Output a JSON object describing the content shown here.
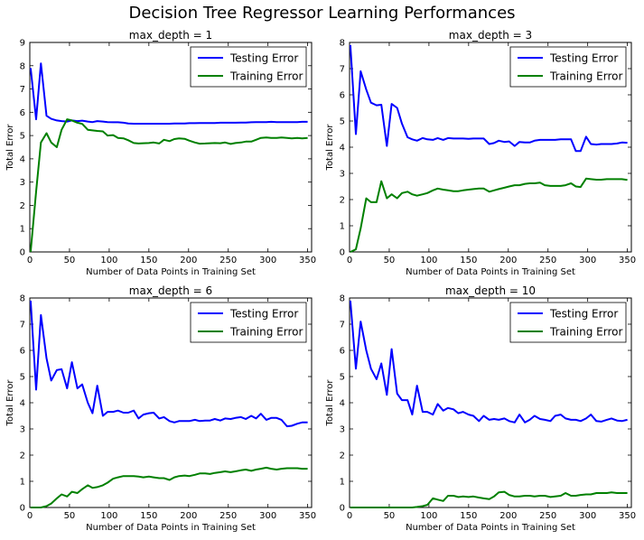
{
  "figure": {
    "title": "Decision Tree Regressor Learning Performances"
  },
  "chart_data": [
    {
      "type": "line",
      "title": "max_depth = 1",
      "xlabel": "Number of Data Points in Training Set",
      "ylabel": "Total Error",
      "xlim": [
        0,
        355
      ],
      "ylim": [
        0,
        9
      ],
      "xticks": [
        0,
        50,
        100,
        150,
        200,
        250,
        300,
        350
      ],
      "yticks": [
        0,
        1,
        2,
        3,
        4,
        5,
        6,
        7,
        8,
        9
      ],
      "legend": "top-right",
      "series": [
        {
          "name": "Testing Error",
          "color": "#0000ff",
          "x": [
            1,
            8,
            14,
            21,
            27,
            34,
            40,
            47,
            53,
            60,
            66,
            73,
            79,
            85,
            92,
            98,
            105,
            111,
            118,
            124,
            131,
            137,
            143,
            150,
            156,
            163,
            169,
            176,
            182,
            188,
            195,
            201,
            208,
            214,
            221,
            227,
            233,
            240,
            246,
            253,
            259,
            266,
            272,
            279,
            285,
            291,
            298,
            304,
            311,
            317,
            324,
            330,
            337,
            343,
            350
          ],
          "y": [
            7.9,
            5.7,
            8.1,
            5.85,
            5.72,
            5.65,
            5.62,
            5.6,
            5.65,
            5.62,
            5.64,
            5.6,
            5.58,
            5.62,
            5.6,
            5.58,
            5.57,
            5.57,
            5.55,
            5.52,
            5.51,
            5.51,
            5.51,
            5.51,
            5.51,
            5.51,
            5.51,
            5.51,
            5.52,
            5.52,
            5.52,
            5.53,
            5.53,
            5.54,
            5.54,
            5.54,
            5.54,
            5.55,
            5.55,
            5.55,
            5.55,
            5.56,
            5.56,
            5.57,
            5.58,
            5.58,
            5.58,
            5.59,
            5.58,
            5.58,
            5.58,
            5.58,
            5.58,
            5.59,
            5.59
          ]
        },
        {
          "name": "Training Error",
          "color": "#008000",
          "x": [
            1,
            8,
            14,
            21,
            27,
            34,
            40,
            47,
            53,
            60,
            66,
            73,
            79,
            85,
            92,
            98,
            105,
            111,
            118,
            124,
            131,
            137,
            143,
            150,
            156,
            163,
            169,
            176,
            182,
            188,
            195,
            201,
            208,
            214,
            221,
            227,
            233,
            240,
            246,
            253,
            259,
            266,
            272,
            279,
            285,
            291,
            298,
            304,
            311,
            317,
            324,
            330,
            337,
            343,
            350
          ],
          "y": [
            0.0,
            2.6,
            4.7,
            5.1,
            4.7,
            4.5,
            5.25,
            5.7,
            5.65,
            5.55,
            5.5,
            5.25,
            5.22,
            5.2,
            5.18,
            5.0,
            5.02,
            4.9,
            4.88,
            4.8,
            4.68,
            4.66,
            4.67,
            4.68,
            4.7,
            4.66,
            4.82,
            4.76,
            4.85,
            4.88,
            4.86,
            4.78,
            4.7,
            4.65,
            4.66,
            4.67,
            4.68,
            4.67,
            4.7,
            4.64,
            4.68,
            4.7,
            4.74,
            4.74,
            4.82,
            4.9,
            4.92,
            4.9,
            4.9,
            4.92,
            4.9,
            4.88,
            4.9,
            4.88,
            4.9
          ]
        }
      ]
    },
    {
      "type": "line",
      "title": "max_depth = 3",
      "xlabel": "Number of Data Points in Training Set",
      "ylabel": "Total Error",
      "xlim": [
        0,
        355
      ],
      "ylim": [
        0,
        8
      ],
      "xticks": [
        0,
        50,
        100,
        150,
        200,
        250,
        300,
        350
      ],
      "yticks": [
        0,
        1,
        2,
        3,
        4,
        5,
        6,
        7,
        8
      ],
      "legend": "top-right",
      "series": [
        {
          "name": "Testing Error",
          "color": "#0000ff",
          "x": [
            1,
            8,
            14,
            21,
            27,
            34,
            40,
            47,
            53,
            60,
            66,
            73,
            79,
            85,
            92,
            98,
            105,
            111,
            118,
            124,
            131,
            137,
            143,
            150,
            156,
            163,
            169,
            176,
            182,
            188,
            195,
            201,
            208,
            214,
            221,
            227,
            233,
            240,
            246,
            253,
            259,
            266,
            272,
            279,
            285,
            291,
            298,
            304,
            311,
            317,
            324,
            330,
            337,
            343,
            350
          ],
          "y": [
            7.9,
            4.5,
            6.9,
            6.2,
            5.7,
            5.6,
            5.62,
            4.05,
            5.65,
            5.5,
            4.9,
            4.38,
            4.3,
            4.25,
            4.35,
            4.3,
            4.28,
            4.35,
            4.28,
            4.35,
            4.33,
            4.33,
            4.33,
            4.32,
            4.33,
            4.33,
            4.33,
            4.12,
            4.16,
            4.25,
            4.2,
            4.22,
            4.05,
            4.2,
            4.18,
            4.18,
            4.25,
            4.28,
            4.28,
            4.28,
            4.28,
            4.3,
            4.3,
            4.3,
            3.85,
            3.85,
            4.4,
            4.12,
            4.1,
            4.12,
            4.12,
            4.12,
            4.14,
            4.18,
            4.17
          ]
        },
        {
          "name": "Training Error",
          "color": "#008000",
          "x": [
            1,
            8,
            14,
            21,
            27,
            34,
            40,
            47,
            53,
            60,
            66,
            73,
            79,
            85,
            92,
            98,
            105,
            111,
            118,
            124,
            131,
            137,
            143,
            150,
            156,
            163,
            169,
            176,
            182,
            188,
            195,
            201,
            208,
            214,
            221,
            227,
            233,
            240,
            246,
            253,
            259,
            266,
            272,
            279,
            285,
            291,
            298,
            304,
            311,
            317,
            324,
            330,
            337,
            343,
            350
          ],
          "y": [
            0.0,
            0.1,
            0.9,
            2.05,
            1.9,
            1.9,
            2.7,
            2.05,
            2.2,
            2.05,
            2.25,
            2.3,
            2.2,
            2.15,
            2.2,
            2.25,
            2.35,
            2.42,
            2.38,
            2.35,
            2.32,
            2.32,
            2.35,
            2.38,
            2.4,
            2.42,
            2.42,
            2.3,
            2.35,
            2.4,
            2.45,
            2.5,
            2.55,
            2.55,
            2.6,
            2.62,
            2.62,
            2.65,
            2.55,
            2.52,
            2.52,
            2.52,
            2.55,
            2.62,
            2.5,
            2.48,
            2.8,
            2.78,
            2.76,
            2.76,
            2.78,
            2.78,
            2.78,
            2.78,
            2.75
          ]
        }
      ]
    },
    {
      "type": "line",
      "title": "max_depth = 6",
      "xlabel": "Number of Data Points in Training Set",
      "ylabel": "Total Error",
      "xlim": [
        0,
        355
      ],
      "ylim": [
        0,
        8
      ],
      "xticks": [
        0,
        50,
        100,
        150,
        200,
        250,
        300,
        350
      ],
      "yticks": [
        0,
        1,
        2,
        3,
        4,
        5,
        6,
        7,
        8
      ],
      "legend": "top-right",
      "series": [
        {
          "name": "Testing Error",
          "color": "#0000ff",
          "x": [
            1,
            8,
            14,
            21,
            27,
            34,
            40,
            47,
            53,
            60,
            66,
            73,
            79,
            85,
            92,
            98,
            105,
            111,
            118,
            124,
            131,
            137,
            143,
            150,
            156,
            163,
            169,
            176,
            182,
            188,
            195,
            201,
            208,
            214,
            221,
            227,
            233,
            240,
            246,
            253,
            259,
            266,
            272,
            279,
            285,
            291,
            298,
            304,
            311,
            317,
            324,
            330,
            337,
            343,
            350
          ],
          "y": [
            7.9,
            4.5,
            7.35,
            5.7,
            4.85,
            5.25,
            5.28,
            4.55,
            5.55,
            4.55,
            4.7,
            4.0,
            3.6,
            4.65,
            3.5,
            3.65,
            3.65,
            3.7,
            3.62,
            3.62,
            3.7,
            3.4,
            3.55,
            3.6,
            3.62,
            3.4,
            3.45,
            3.3,
            3.25,
            3.3,
            3.3,
            3.3,
            3.35,
            3.3,
            3.32,
            3.32,
            3.38,
            3.32,
            3.4,
            3.38,
            3.42,
            3.45,
            3.38,
            3.5,
            3.4,
            3.58,
            3.35,
            3.42,
            3.42,
            3.35,
            3.1,
            3.12,
            3.2,
            3.25,
            3.25
          ]
        },
        {
          "name": "Training Error",
          "color": "#008000",
          "x": [
            1,
            8,
            14,
            21,
            27,
            34,
            40,
            47,
            53,
            60,
            66,
            73,
            79,
            85,
            92,
            98,
            105,
            111,
            118,
            124,
            131,
            137,
            143,
            150,
            156,
            163,
            169,
            176,
            182,
            188,
            195,
            201,
            208,
            214,
            221,
            227,
            233,
            240,
            246,
            253,
            259,
            266,
            272,
            279,
            285,
            291,
            298,
            304,
            311,
            317,
            324,
            330,
            337,
            343,
            350
          ],
          "y": [
            0.0,
            0.0,
            0.0,
            0.05,
            0.15,
            0.35,
            0.5,
            0.42,
            0.6,
            0.55,
            0.7,
            0.85,
            0.75,
            0.78,
            0.85,
            0.95,
            1.1,
            1.15,
            1.2,
            1.2,
            1.2,
            1.18,
            1.15,
            1.18,
            1.15,
            1.12,
            1.12,
            1.05,
            1.15,
            1.2,
            1.22,
            1.2,
            1.25,
            1.3,
            1.3,
            1.28,
            1.32,
            1.35,
            1.38,
            1.35,
            1.38,
            1.42,
            1.45,
            1.4,
            1.45,
            1.48,
            1.52,
            1.48,
            1.45,
            1.48,
            1.5,
            1.5,
            1.5,
            1.48,
            1.48
          ]
        }
      ]
    },
    {
      "type": "line",
      "title": "max_depth = 10",
      "xlabel": "Number of Data Points in Training Set",
      "ylabel": "Total Error",
      "xlim": [
        0,
        355
      ],
      "ylim": [
        0,
        8
      ],
      "xticks": [
        0,
        50,
        100,
        150,
        200,
        250,
        300,
        350
      ],
      "yticks": [
        0,
        1,
        2,
        3,
        4,
        5,
        6,
        7,
        8
      ],
      "legend": "top-right",
      "series": [
        {
          "name": "Testing Error",
          "color": "#0000ff",
          "x": [
            1,
            8,
            14,
            21,
            27,
            34,
            40,
            47,
            53,
            60,
            66,
            73,
            79,
            85,
            92,
            98,
            105,
            111,
            118,
            124,
            131,
            137,
            143,
            150,
            156,
            163,
            169,
            176,
            182,
            188,
            195,
            201,
            208,
            214,
            221,
            227,
            233,
            240,
            246,
            253,
            259,
            266,
            272,
            279,
            285,
            291,
            298,
            304,
            311,
            317,
            324,
            330,
            337,
            343,
            350
          ],
          "y": [
            7.9,
            5.3,
            7.1,
            6.0,
            5.3,
            4.9,
            5.5,
            4.3,
            6.05,
            4.35,
            4.1,
            4.1,
            3.55,
            4.65,
            3.65,
            3.65,
            3.55,
            3.95,
            3.7,
            3.8,
            3.75,
            3.6,
            3.65,
            3.55,
            3.5,
            3.3,
            3.5,
            3.35,
            3.38,
            3.35,
            3.4,
            3.3,
            3.25,
            3.55,
            3.25,
            3.35,
            3.5,
            3.38,
            3.35,
            3.3,
            3.5,
            3.55,
            3.4,
            3.35,
            3.35,
            3.3,
            3.4,
            3.55,
            3.3,
            3.28,
            3.35,
            3.4,
            3.32,
            3.3,
            3.35
          ]
        },
        {
          "name": "Training Error",
          "color": "#008000",
          "x": [
            1,
            8,
            14,
            21,
            27,
            34,
            40,
            47,
            53,
            60,
            66,
            73,
            79,
            85,
            92,
            98,
            105,
            111,
            118,
            124,
            131,
            137,
            143,
            150,
            156,
            163,
            169,
            176,
            182,
            188,
            195,
            201,
            208,
            214,
            221,
            227,
            233,
            240,
            246,
            253,
            259,
            266,
            272,
            279,
            285,
            291,
            298,
            304,
            311,
            317,
            324,
            330,
            337,
            343,
            350
          ],
          "y": [
            0.0,
            0.0,
            0.0,
            0.0,
            0.0,
            0.0,
            0.0,
            0.0,
            0.0,
            0.0,
            0.0,
            0.0,
            0.0,
            0.02,
            0.05,
            0.1,
            0.35,
            0.3,
            0.25,
            0.45,
            0.45,
            0.4,
            0.42,
            0.4,
            0.42,
            0.38,
            0.35,
            0.32,
            0.42,
            0.58,
            0.6,
            0.48,
            0.42,
            0.42,
            0.45,
            0.45,
            0.42,
            0.45,
            0.45,
            0.4,
            0.42,
            0.45,
            0.55,
            0.45,
            0.45,
            0.48,
            0.5,
            0.5,
            0.55,
            0.55,
            0.55,
            0.58,
            0.55,
            0.55,
            0.55
          ]
        }
      ]
    }
  ]
}
